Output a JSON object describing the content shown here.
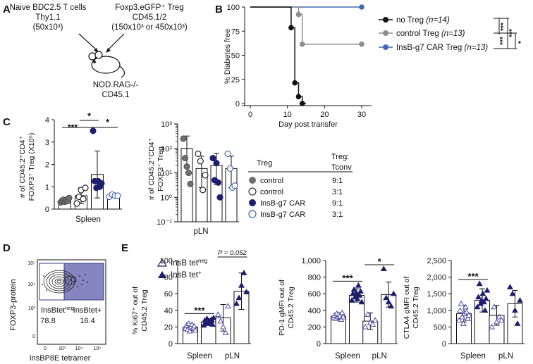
{
  "colors": {
    "black": "#111111",
    "gray": "#8c8c8c",
    "navy": "#1e1e6e",
    "blue": "#4169b4",
    "light_blue": "#3a5fb0",
    "gate": "#8585c0"
  },
  "panel_a": {
    "letter": "A",
    "left_cells": [
      "Naive BDC2.5 T cells",
      "Thy1.1",
      "(50x10³)"
    ],
    "right_cells": [
      "Foxp3.eGFP⁺ Treg",
      "CD45.1/2",
      "(150x10³ or 450x10³)"
    ],
    "mouse": [
      "NOD.RAG-/-",
      "CD45.1"
    ]
  },
  "chart_data": [
    {
      "panel": "B",
      "type": "line",
      "ylabel": "% Diabetes free",
      "xlabel": "Day post transfer",
      "xlim": [
        0,
        30
      ],
      "ylim": [
        0,
        100
      ],
      "x_ticks": [
        "0",
        "10",
        "20",
        "30"
      ],
      "y_ticks": [
        "0",
        "25",
        "50",
        "75",
        "100"
      ],
      "series": [
        {
          "name": "no Treg",
          "n": "(n=14)",
          "color": "#111111",
          "steps": [
            [
              0,
              100
            ],
            [
              11,
              100
            ],
            [
              11,
              78.6
            ],
            [
              12,
              78.6
            ],
            [
              12,
              21.4
            ],
            [
              13,
              21.4
            ],
            [
              13,
              7.1
            ],
            [
              14,
              7.1
            ],
            [
              14,
              0
            ],
            [
              15,
              0
            ]
          ],
          "markers": [
            [
              11,
              78.6
            ],
            [
              12,
              21.4
            ],
            [
              13,
              7.1
            ],
            [
              14,
              0
            ]
          ]
        },
        {
          "name": "control Treg",
          "n": "(n=13)",
          "color": "#8c8c8c",
          "steps": [
            [
              0,
              100
            ],
            [
              13,
              100
            ],
            [
              13,
              92.3
            ],
            [
              14,
              92.3
            ],
            [
              14,
              61.5
            ],
            [
              30,
              61.5
            ]
          ],
          "markers": [
            [
              13,
              92.3
            ],
            [
              14,
              61.5
            ],
            [
              30,
              61.5
            ]
          ]
        },
        {
          "name": "InsB-g7 CAR Treg",
          "n": "(n=13)",
          "color": "#4169b4",
          "steps": [
            [
              0,
              100
            ],
            [
              30,
              100
            ]
          ],
          "markers": [
            [
              30,
              100
            ]
          ]
        }
      ],
      "significance": [
        "***",
        "***",
        "***",
        "*"
      ]
    },
    {
      "panel": "C-spleen",
      "type": "bar",
      "ylabel": [
        "# of CD45.2⁺CD4⁺",
        "FOXP3⁺ Treg (X10⁵)"
      ],
      "xlabel": "Spleen",
      "ylim": [
        0,
        4
      ],
      "y_ticks": [
        "0",
        "1",
        "2",
        "3",
        "4"
      ],
      "groups": [
        "control 9:1",
        "control 3:1",
        "InsB-g7 CAR 9:1",
        "InsB-g7 CAR 3:1"
      ],
      "means": [
        0.35,
        0.6,
        1.55,
        0.6
      ],
      "sd": [
        0.1,
        0.35,
        1.05,
        0.08
      ],
      "points": [
        [
          0.3,
          0.38,
          0.42,
          0.33,
          0.4,
          0.36,
          0.5
        ],
        [
          0.25,
          0.55,
          0.85,
          0.45,
          0.95
        ],
        [
          3.5,
          1.25,
          0.95,
          1.25,
          1.0,
          1.15
        ],
        [
          0.55,
          0.65,
          0.6,
          0.6
        ]
      ],
      "significance": [
        {
          "label": "***",
          "from": 0,
          "to": 2
        },
        {
          "label": "*",
          "from": 1,
          "to": 2
        },
        {
          "label": "*",
          "from": 2,
          "to": 3
        }
      ]
    },
    {
      "panel": "C-pLN",
      "type": "bar",
      "scale": "log",
      "ylabel": [
        "# of CD45.2⁺CD4⁺",
        "FOXP3⁺ Treg"
      ],
      "xlabel": "pLN",
      "ylim_log10": [
        -1,
        3
      ],
      "y_ticks": [
        "10⁻¹",
        "10⁰",
        "10¹",
        "10²",
        "10³"
      ],
      "groups": [
        "control 9:1",
        "control 3:1",
        "InsB-g7 CAR 9:1",
        "InsB-g7 CAR 3:1"
      ],
      "means": [
        100,
        15,
        20,
        15
      ],
      "points": [
        [
          250,
          40,
          18,
          10,
          3.5
        ],
        [
          60,
          30,
          2,
          8
        ],
        [
          40,
          5,
          25,
          4,
          1
        ],
        [
          60,
          15,
          2.5,
          3
        ]
      ]
    },
    {
      "panel": "E-Ki67",
      "type": "bar",
      "ylabel": [
        "% Ki67⁺ out of",
        "CD45.2 Treg"
      ],
      "categories": [
        "Spleen",
        "pLN"
      ],
      "ylim": [
        0,
        100
      ],
      "y_ticks": [
        "0",
        "20",
        "40",
        "60",
        "80",
        "100"
      ],
      "series": [
        {
          "name": "InsB tetneg",
          "means": [
            20,
            31
          ],
          "sd": [
            4,
            16
          ]
        },
        {
          "name": "InsB tet+",
          "means": [
            26,
            63
          ],
          "sd": [
            4,
            22
          ]
        }
      ],
      "points": [
        [
          18,
          22,
          17,
          24,
          15,
          20,
          23,
          19,
          21,
          16
        ],
        [
          22,
          28,
          25,
          30,
          24,
          27,
          26,
          29,
          23,
          31
        ],
        [
          35,
          27,
          20,
          13,
          45
        ],
        [
          48,
          55,
          70,
          85,
          62
        ]
      ],
      "significance": [
        "***",
        "P = 0.052"
      ]
    },
    {
      "panel": "E-PD1",
      "type": "bar",
      "ylabel": [
        "PD-1 gMFI out of",
        "CD45.2 Treg"
      ],
      "categories": [
        "Spleen",
        "pLN"
      ],
      "ylim": [
        0,
        1000
      ],
      "y_ticks": [
        "0",
        "200",
        "400",
        "600",
        "800",
        "1,000"
      ],
      "series": [
        {
          "name": "InsB tetneg",
          "means": [
            330,
            270
          ],
          "sd": [
            40,
            100
          ]
        },
        {
          "name": "InsB tet+",
          "means": [
            580,
            590
          ],
          "sd": [
            80,
            150
          ]
        }
      ],
      "points": [
        [
          310,
          340,
          300,
          360,
          320,
          350,
          330,
          290,
          370,
          320
        ],
        [
          520,
          600,
          650,
          560,
          610,
          540,
          700,
          580,
          630,
          500
        ],
        [
          200,
          350,
          250,
          230,
          280
        ],
        [
          900,
          550,
          500,
          450,
          600
        ]
      ],
      "significance": [
        "***",
        "*"
      ]
    },
    {
      "panel": "E-CTLA4",
      "type": "bar",
      "ylabel": [
        "CTLA4 gMFI out of",
        "CD45.2 Treg"
      ],
      "categories": [
        "Spleen",
        "pLN"
      ],
      "ylim": [
        0,
        2500
      ],
      "y_ticks": [
        "0",
        "500",
        "1,000",
        "1,500",
        "2,000",
        "2,500"
      ],
      "series": [
        {
          "name": "InsB tetneg",
          "means": [
            900,
            850
          ],
          "sd": [
            250,
            300
          ]
        },
        {
          "name": "InsB tet+",
          "means": [
            1300,
            1200
          ],
          "sd": [
            350,
            400
          ]
        }
      ],
      "points": [
        [
          700,
          1000,
          1200,
          800,
          600,
          900,
          1100,
          950,
          750,
          850
        ],
        [
          1100,
          1400,
          1800,
          1200,
          1300,
          1500,
          1250,
          1000,
          1350,
          1600
        ],
        [
          500,
          1100,
          650,
          800,
          700
        ],
        [
          1700,
          1500,
          1000,
          600,
          1300
        ]
      ],
      "significance": [
        "***"
      ]
    }
  ],
  "panel_b": {
    "letter": "B"
  },
  "panel_c": {
    "letter": "C",
    "legend": {
      "header_treg": "Treg",
      "header_ratio": [
        "Treg:",
        "Tconv"
      ],
      "items": [
        {
          "label": "control",
          "ratio": "9:1",
          "style": "filled-gray"
        },
        {
          "label": "control",
          "ratio": "3:1",
          "style": "open-black"
        },
        {
          "label": "InsB-g7 CAR",
          "ratio": "9:1",
          "style": "filled-navy"
        },
        {
          "label": "InsB-g7 CAR",
          "ratio": "3:1",
          "style": "open-blue"
        }
      ]
    }
  },
  "panel_d": {
    "letter": "D",
    "ylabel": "FOXP3-protein",
    "xlabel": "InsBP8E tetramer",
    "ticks_y": [
      "10⁵",
      "10⁴",
      "10³",
      "0"
    ],
    "ticks_x": [
      "0",
      "10³",
      "10⁴",
      "10⁵"
    ],
    "gate_neg_label": "InsBtet",
    "gate_neg_sup": "neg",
    "gate_neg_value": "78.8",
    "gate_pos_label": "InsBtet+",
    "gate_pos_value": "16.4"
  },
  "panel_e": {
    "letter": "E",
    "legend": [
      {
        "label": "InsB tet",
        "sup": "neg",
        "style": "open-triangle"
      },
      {
        "label": "InsB tet",
        "sup": "+",
        "style": "filled-triangle"
      }
    ]
  }
}
